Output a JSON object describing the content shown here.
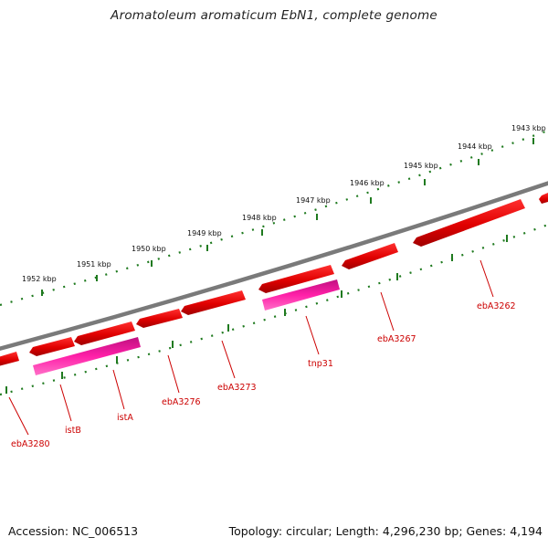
{
  "title": "Aromatoleum aromaticum EbN1, complete genome",
  "footer": {
    "accession": "Accession: NC_006513",
    "topology": "Topology: circular; Length: 4,296,230 bp; Genes: 4,194"
  },
  "colors": {
    "backbone": "#7a7a7a",
    "gene_forward": "#ff0000",
    "gene_reverse_mobile": "#ff1aa0",
    "tick": "#1f7a1f",
    "label": "#cc0000"
  },
  "scale_labels": [
    "1943 kbp",
    "1944 kbp",
    "1945 kbp",
    "1946 kbp",
    "1947 kbp",
    "1948 kbp",
    "1949 kbp",
    "1950 kbp",
    "1951 kbp",
    "1952 kbp"
  ],
  "genes": [
    {
      "label": "ebA3262",
      "color": "gene_forward"
    },
    {
      "label": "ebA3267",
      "color": "gene_forward"
    },
    {
      "label": "tnp31",
      "color": "gene_reverse_mobile"
    },
    {
      "label": "ebA3273",
      "color": "gene_forward"
    },
    {
      "label": "ebA3276",
      "color": "gene_forward"
    },
    {
      "label": "istA",
      "color": "gene_reverse_mobile"
    },
    {
      "label": "istB",
      "color": "gene_forward"
    },
    {
      "label": "ebA3280",
      "color": "gene_forward"
    }
  ]
}
